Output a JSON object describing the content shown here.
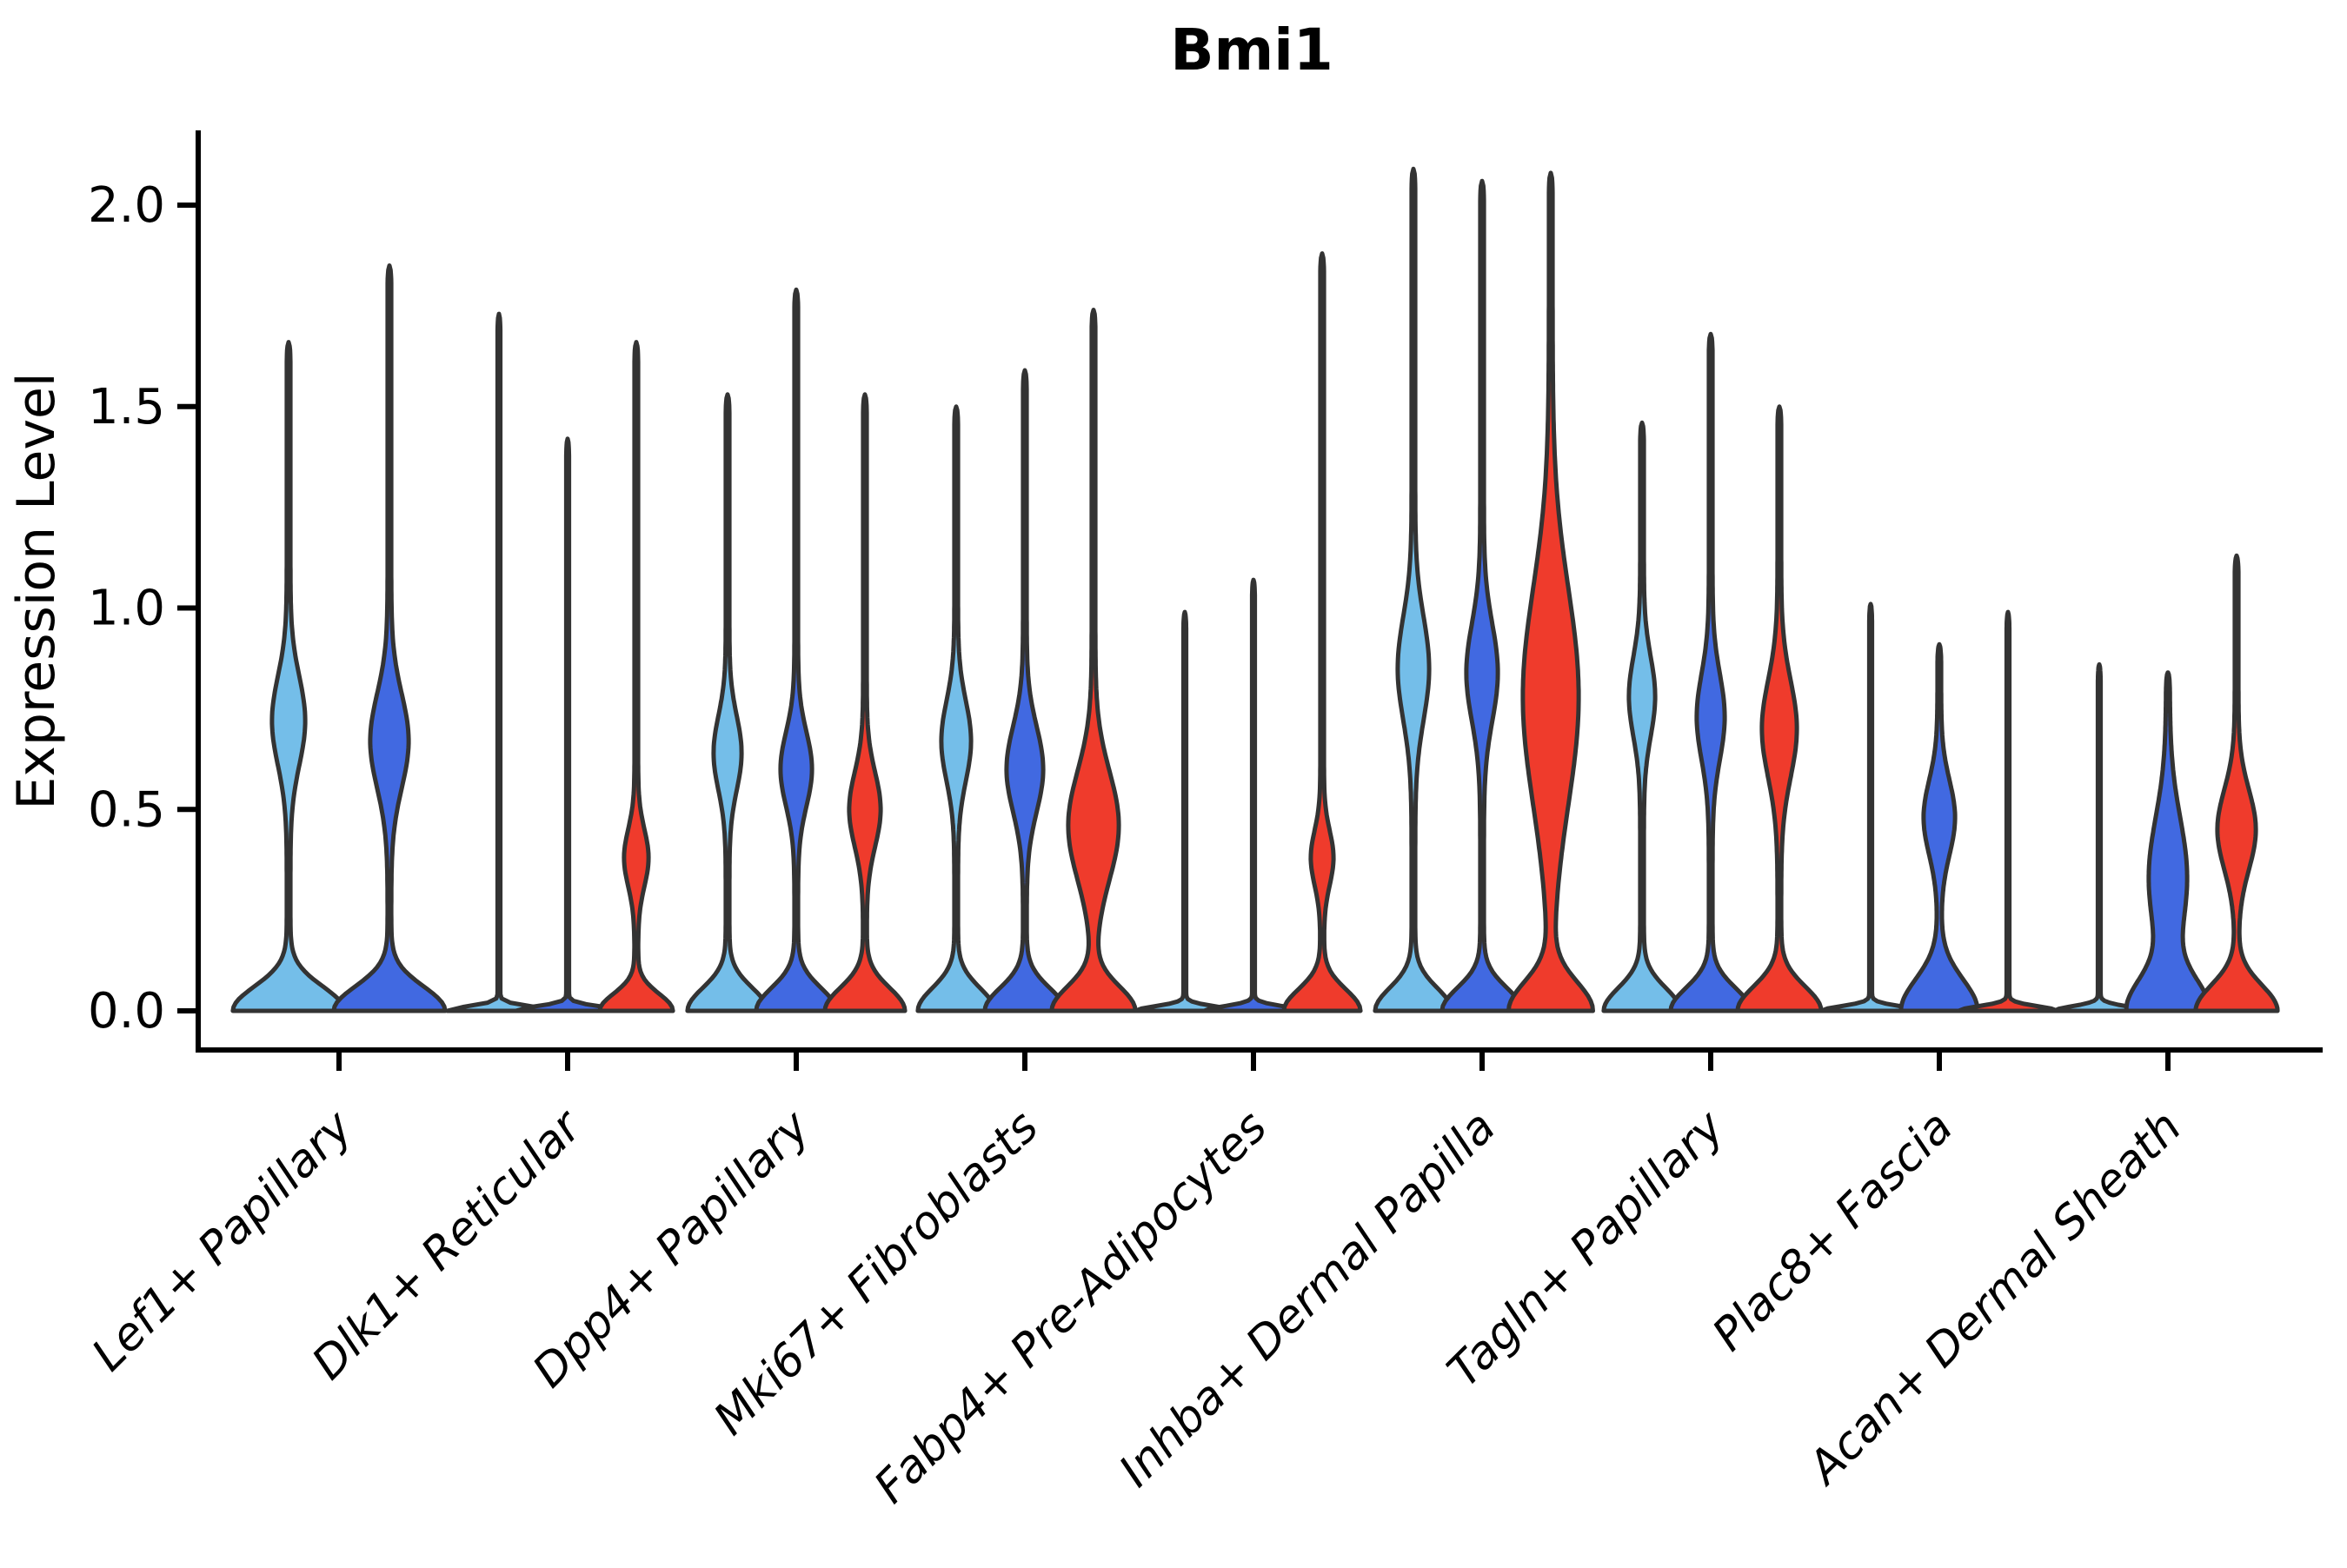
{
  "chart_data": {
    "type": "violin",
    "title": "Bmi1",
    "ylabel": "Expression Level",
    "xlabel": "",
    "ylim": [
      0,
      2.2
    ],
    "grid": false,
    "legend": "none",
    "yticks": [
      0.0,
      0.5,
      1.0,
      1.5,
      2.0
    ],
    "ytick_labels": [
      "0.0",
      "0.5",
      "1.0",
      "1.5",
      "2.0"
    ],
    "palette": {
      "light_blue": "#74BEE9",
      "royal_blue": "#4169E1",
      "red": "#EF3B2C",
      "outline": "#333333",
      "axis": "#000000"
    },
    "categories": [
      "Lef1+ Papillary",
      "Dlk1+ Reticular",
      "Dpp4+ Papillary",
      "Mki67+ Fibroblasts",
      "Fabp4+ Pre-Adipocytes",
      "Inhba+ Dermal Papilla",
      "Tagln+ Papillary",
      "Plac8+ Fascia",
      "Acan+ Dermal Sheath"
    ],
    "violins": [
      {
        "category": "Lef1+ Papillary",
        "series": [
          {
            "color": "light_blue",
            "kind": "violin",
            "max": 1.66,
            "base_hw": 62,
            "base_sig": 0.085,
            "bulge_c": 0.72,
            "bulge_s": 0.155,
            "bulge_hw": 17
          },
          {
            "color": "royal_blue",
            "kind": "violin",
            "max": 1.85,
            "base_hw": 62,
            "base_sig": 0.085,
            "bulge_c": 0.67,
            "bulge_s": 0.165,
            "bulge_hw": 20
          }
        ]
      },
      {
        "category": "Dlk1+ Reticular",
        "series": [
          {
            "color": "light_blue",
            "kind": "spike",
            "max": 1.73,
            "base_hw": 58
          },
          {
            "color": "royal_blue",
            "kind": "spike",
            "max": 1.42,
            "base_hw": 58
          },
          {
            "color": "red",
            "kind": "violin",
            "max": 1.66,
            "base_hw": 40,
            "base_sig": 0.06,
            "bulge_c": 0.38,
            "bulge_s": 0.1,
            "bulge_hw": 12
          }
        ]
      },
      {
        "category": "Dpp4+ Papillary",
        "series": [
          {
            "color": "light_blue",
            "kind": "violin",
            "max": 1.53,
            "base_hw": 44,
            "base_sig": 0.08,
            "bulge_c": 0.64,
            "bulge_s": 0.13,
            "bulge_hw": 14
          },
          {
            "color": "royal_blue",
            "kind": "violin",
            "max": 1.79,
            "base_hw": 44,
            "base_sig": 0.08,
            "bulge_c": 0.6,
            "bulge_s": 0.13,
            "bulge_hw": 16
          },
          {
            "color": "red",
            "kind": "violin",
            "max": 1.53,
            "base_hw": 44,
            "base_sig": 0.08,
            "bulge_c": 0.5,
            "bulge_s": 0.13,
            "bulge_hw": 16
          }
        ]
      },
      {
        "category": "Mki67+ Fibroblasts",
        "series": [
          {
            "color": "light_blue",
            "kind": "violin",
            "max": 1.5,
            "base_hw": 42,
            "base_sig": 0.08,
            "bulge_c": 0.67,
            "bulge_s": 0.14,
            "bulge_hw": 15
          },
          {
            "color": "royal_blue",
            "kind": "violin",
            "max": 1.59,
            "base_hw": 44,
            "base_sig": 0.08,
            "bulge_c": 0.6,
            "bulge_s": 0.15,
            "bulge_hw": 19
          },
          {
            "color": "red",
            "kind": "violin",
            "max": 1.74,
            "base_hw": 46,
            "base_sig": 0.085,
            "bulge_c": 0.46,
            "bulge_s": 0.19,
            "bulge_hw": 27
          }
        ]
      },
      {
        "category": "Fabp4+ Pre-Adipocytes",
        "series": [
          {
            "color": "light_blue",
            "kind": "spike",
            "max": 0.99,
            "base_hw": 55
          },
          {
            "color": "royal_blue",
            "kind": "spike",
            "max": 1.07,
            "base_hw": 55
          },
          {
            "color": "red",
            "kind": "violin",
            "max": 1.88,
            "base_hw": 42,
            "base_sig": 0.075,
            "bulge_c": 0.38,
            "bulge_s": 0.095,
            "bulge_hw": 11
          }
        ]
      },
      {
        "category": "Inhba+ Dermal Papilla",
        "series": [
          {
            "color": "light_blue",
            "kind": "violin",
            "max": 2.09,
            "base_hw": 42,
            "base_sig": 0.08,
            "bulge_c": 0.85,
            "bulge_s": 0.18,
            "bulge_hw": 16
          },
          {
            "color": "royal_blue",
            "kind": "violin",
            "max": 2.06,
            "base_hw": 44,
            "base_sig": 0.08,
            "bulge_c": 0.84,
            "bulge_s": 0.17,
            "bulge_hw": 16
          },
          {
            "color": "red",
            "kind": "violin",
            "max": 2.08,
            "base_hw": 46,
            "base_sig": 0.1,
            "bulge_c": 0.78,
            "bulge_s": 0.38,
            "bulge_hw": 30
          }
        ]
      },
      {
        "category": "Tagln+ Papillary",
        "series": [
          {
            "color": "light_blue",
            "kind": "violin",
            "max": 1.46,
            "base_hw": 42,
            "base_sig": 0.08,
            "bulge_c": 0.78,
            "bulge_s": 0.14,
            "bulge_hw": 13
          },
          {
            "color": "royal_blue",
            "kind": "violin",
            "max": 1.68,
            "base_hw": 44,
            "base_sig": 0.08,
            "bulge_c": 0.73,
            "bulge_s": 0.15,
            "bulge_hw": 14
          },
          {
            "color": "red",
            "kind": "violin",
            "max": 1.5,
            "base_hw": 46,
            "base_sig": 0.085,
            "bulge_c": 0.7,
            "bulge_s": 0.17,
            "bulge_hw": 18
          }
        ]
      },
      {
        "category": "Plac8+ Fascia",
        "series": [
          {
            "color": "light_blue",
            "kind": "spike",
            "max": 1.01,
            "base_hw": 55
          },
          {
            "color": "royal_blue",
            "kind": "violin",
            "max": 0.91,
            "base_hw": 42,
            "base_sig": 0.11,
            "bulge_c": 0.48,
            "bulge_s": 0.13,
            "bulge_hw": 16
          },
          {
            "color": "red",
            "kind": "spike",
            "max": 0.99,
            "base_hw": 55
          }
        ]
      },
      {
        "category": "Acan+ Dermal Sheath",
        "series": [
          {
            "color": "light_blue",
            "kind": "spike",
            "max": 0.86,
            "base_hw": 50
          },
          {
            "color": "royal_blue",
            "kind": "violin",
            "max": 0.84,
            "base_hw": 44,
            "base_sig": 0.11,
            "bulge_c": 0.33,
            "bulge_s": 0.21,
            "bulge_hw": 20
          },
          {
            "color": "red",
            "kind": "violin",
            "max": 1.13,
            "base_hw": 45,
            "base_sig": 0.09,
            "bulge_c": 0.45,
            "bulge_s": 0.14,
            "bulge_hw": 20
          }
        ]
      }
    ]
  }
}
